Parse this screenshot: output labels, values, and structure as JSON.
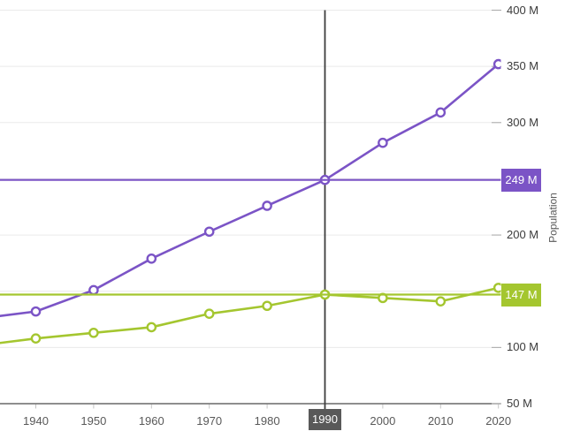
{
  "chart": {
    "y_axis_title": "Population",
    "crosshair": {
      "year": "1990",
      "purple_value": "249 M",
      "green_value": "147 M"
    }
  },
  "chart_data": {
    "type": "line",
    "title": "",
    "xlabel": "",
    "ylabel": "Population",
    "x": [
      1940,
      1950,
      1960,
      1970,
      1980,
      1990,
      2000,
      2010,
      2020
    ],
    "x_tick_labels": [
      "1940",
      "1950",
      "1960",
      "1970",
      "1980",
      "1990",
      "2000",
      "2010",
      "2020"
    ],
    "series": [
      {
        "name": "purple-series",
        "color": "#7B54C6",
        "values": [
          132,
          151,
          179,
          203,
          226,
          249,
          282,
          309,
          352
        ],
        "left_edge_value": 128
      },
      {
        "name": "green-series",
        "color": "#A4C62F",
        "values": [
          108,
          113,
          118,
          130,
          137,
          147,
          144,
          141,
          153
        ],
        "left_edge_value": 104
      }
    ],
    "y_ticks": [
      {
        "label": "400 M",
        "value": 400
      },
      {
        "label": "350 M",
        "value": 350
      },
      {
        "label": "300 M",
        "value": 300
      },
      {
        "label": "",
        "value": 250
      },
      {
        "label": "200 M",
        "value": 200
      },
      {
        "label": "",
        "value": 150
      },
      {
        "label": "100 M",
        "value": 100
      },
      {
        "label": "50 M",
        "value": 50
      }
    ],
    "ylim": [
      50,
      400
    ],
    "grid": true,
    "legend": "none",
    "axis_side": "right",
    "selected_x": 1990,
    "reference_lines": [
      {
        "value": 249,
        "color": "#7B54C6",
        "label": "249 M"
      },
      {
        "value": 147,
        "color": "#A4C62F",
        "label": "147 M"
      }
    ],
    "colors": {
      "gridline": "#eaeaea",
      "axis_line": "#4a4a4a",
      "crosshair": "#3c3c3c",
      "selected_tick_bg": "#595959",
      "x_label": "#595959",
      "y_label": "#3b3b3b",
      "marker_fill": "#ffffff"
    }
  }
}
